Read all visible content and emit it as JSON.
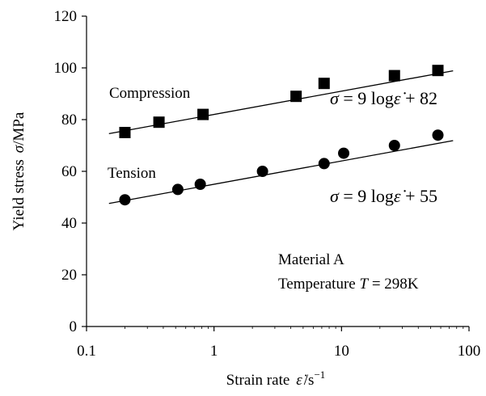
{
  "chart_data": {
    "type": "scatter",
    "x_scale": "log",
    "xlim": [
      0.1,
      100
    ],
    "ylim": [
      0,
      120
    ],
    "x_ticks": [
      {
        "value": 0.1,
        "label": "0.1"
      },
      {
        "value": 1,
        "label": "1"
      },
      {
        "value": 10,
        "label": "10"
      },
      {
        "value": 100,
        "label": "100"
      }
    ],
    "y_ticks": [
      0,
      20,
      40,
      60,
      80,
      100,
      120
    ],
    "y_tick_labels": [
      "0",
      "20",
      "40",
      "60",
      "80",
      "100",
      "120"
    ],
    "grid": false,
    "ylabel_text": "Yield stress",
    "ylabel_symbol": "σ",
    "ylabel_unit": "/MPa",
    "xlabel_text": "Strain rate",
    "xlabel_symbol": "ε̇",
    "xlabel_unit": "/s",
    "xlabel_unit_exp": "−1",
    "series": [
      {
        "name": "Compression",
        "marker": "square",
        "x": [
          0.2,
          0.37,
          0.82,
          4.4,
          7.3,
          26,
          57
        ],
        "y": [
          75,
          79,
          82,
          89,
          94,
          97,
          99
        ],
        "fit": {
          "slope": 9,
          "intercept": 82,
          "x_range": [
            0.15,
            75
          ]
        },
        "equation": {
          "lhs": "σ",
          "eq": " = 9 log",
          "var": "ε̇",
          "rest": " + 82"
        }
      },
      {
        "name": "Tension",
        "marker": "circle",
        "x": [
          0.2,
          0.52,
          0.78,
          2.4,
          7.3,
          10.4,
          26,
          57
        ],
        "y": [
          49,
          53,
          55,
          60,
          63,
          67,
          70,
          74
        ],
        "fit": {
          "slope": 9,
          "intercept": 55,
          "x_range": [
            0.15,
            75
          ]
        },
        "equation": {
          "lhs": "σ",
          "eq": " = 9 log",
          "var": "ε̇",
          "rest": " + 55"
        }
      }
    ],
    "annotation": {
      "line1": "Material A",
      "line2_text": "Temperature ",
      "line2_symbol": "T",
      "line2_value": " = 298K"
    }
  }
}
